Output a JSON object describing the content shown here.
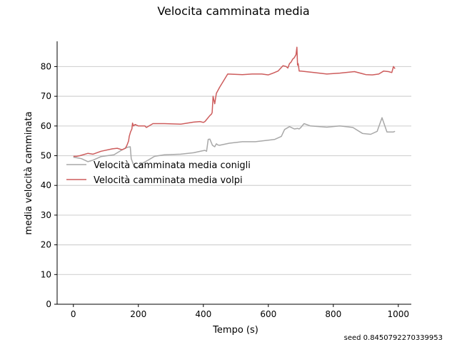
{
  "chart_data": {
    "type": "line",
    "title": "Velocita camminata media",
    "xlabel": "Tempo (s)",
    "ylabel": "media velocità camminata",
    "xlim": [
      -50,
      1040
    ],
    "ylim": [
      0,
      88.5
    ],
    "xticks": [
      0,
      200,
      400,
      600,
      800,
      1000
    ],
    "yticks": [
      0,
      10,
      20,
      30,
      40,
      50,
      60,
      70,
      80
    ],
    "grid": "horizontal",
    "legend_position": "center-left",
    "annotation": "seed 0.8450792270339953",
    "series": [
      {
        "name": "Velocità camminata media conigli",
        "color": "#a8a8a8",
        "x": [
          0,
          10,
          25,
          45,
          60,
          85,
          125,
          150,
          165,
          170,
          175,
          178,
          185,
          195,
          210,
          230,
          250,
          280,
          330,
          370,
          395,
          405,
          410,
          415,
          420,
          428,
          435,
          440,
          445,
          450,
          480,
          520,
          560,
          600,
          620,
          640,
          650,
          665,
          680,
          690,
          695,
          700,
          710,
          730,
          780,
          820,
          860,
          890,
          915,
          935,
          950,
          965,
          985,
          990
        ],
        "y": [
          49.5,
          49.3,
          49.0,
          48.0,
          48.5,
          49.7,
          50.3,
          52.0,
          52.8,
          52.9,
          53.0,
          49.0,
          47.0,
          45.8,
          47.3,
          48.5,
          49.8,
          50.3,
          50.5,
          51.0,
          51.6,
          51.8,
          51.5,
          55.5,
          55.6,
          53.5,
          53.0,
          54.0,
          53.6,
          53.5,
          54.2,
          54.7,
          54.7,
          55.2,
          55.5,
          56.5,
          58.8,
          59.8,
          59.0,
          59.2,
          59.0,
          59.5,
          60.8,
          60.0,
          59.6,
          60.0,
          59.5,
          57.5,
          57.2,
          58.2,
          62.8,
          58.0,
          58.0,
          58.2
        ]
      },
      {
        "name": "Velocità camminata media volpi",
        "color": "#cd5c5c",
        "x": [
          0,
          10,
          20,
          45,
          60,
          85,
          120,
          135,
          150,
          160,
          165,
          170,
          172,
          176,
          180,
          182,
          185,
          190,
          200,
          220,
          225,
          245,
          280,
          330,
          370,
          390,
          400,
          405,
          420,
          425,
          427,
          430,
          435,
          440,
          450,
          475,
          520,
          550,
          580,
          600,
          615,
          630,
          645,
          655,
          660,
          665,
          670,
          675,
          680,
          685,
          688,
          690,
          692,
          695,
          700,
          740,
          780,
          820,
          865,
          900,
          920,
          940,
          955,
          970,
          980,
          985,
          990
        ],
        "y": [
          49.8,
          49.8,
          50.0,
          50.8,
          50.5,
          51.5,
          52.3,
          52.5,
          52.0,
          52.5,
          53.5,
          55.0,
          56.5,
          58.0,
          59.0,
          61.0,
          60.0,
          60.5,
          60.0,
          60.0,
          59.5,
          60.8,
          60.8,
          60.6,
          61.3,
          61.5,
          61.2,
          61.5,
          63.5,
          64.0,
          64.5,
          70.0,
          67.5,
          71.0,
          73.0,
          77.5,
          77.3,
          77.5,
          77.5,
          77.2,
          77.8,
          78.5,
          80.3,
          80.0,
          79.5,
          81.0,
          81.5,
          82.5,
          83.0,
          84.0,
          86.5,
          80.5,
          81.0,
          78.5,
          78.5,
          78.0,
          77.5,
          77.8,
          78.3,
          77.3,
          77.2,
          77.5,
          78.5,
          78.3,
          78.0,
          80.0,
          79.3
        ]
      }
    ]
  }
}
